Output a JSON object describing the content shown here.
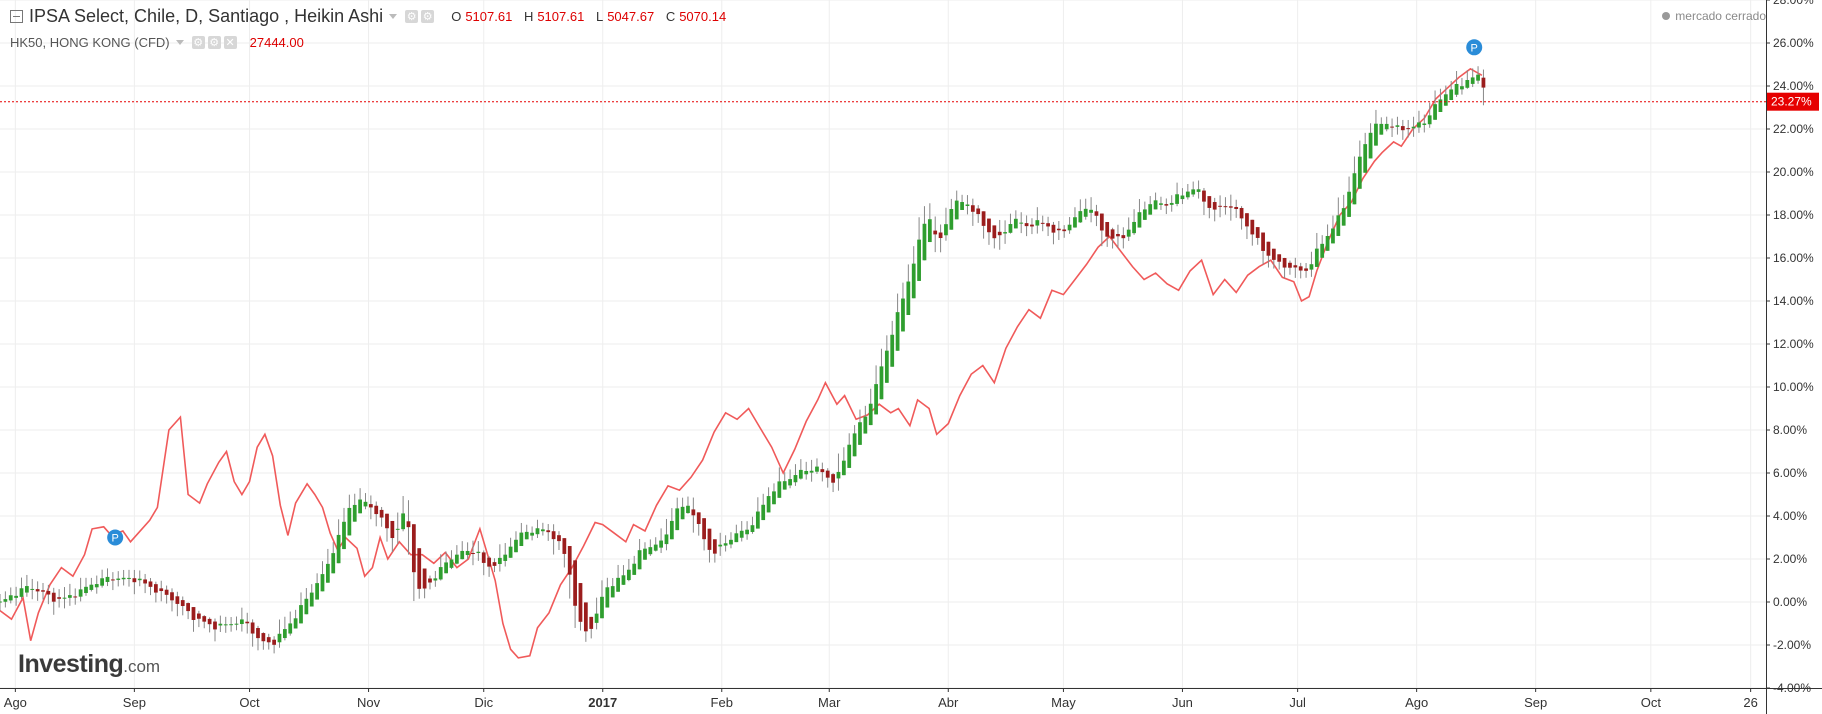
{
  "legend": {
    "main_title": "IPSA Select, Chile, D, Santiago , Heikin Ashi",
    "ohlc": {
      "o_label": "O",
      "o": "5107.61",
      "h_label": "H",
      "h": "5107.61",
      "l_label": "L",
      "l": "5047.67",
      "c_label": "C",
      "c": "5070.14"
    },
    "compare_title": "HK50, HONG KONG (CFD)",
    "compare_value": "27444.00"
  },
  "market_status": "mercado cerrado",
  "logo": {
    "brand": "Investing",
    "tld": ".com"
  },
  "price_label": "23.27%",
  "colors": {
    "up": "#2f9e2f",
    "down": "#9b1d1d",
    "compare": "#f05a5a",
    "price_line": "#e60000",
    "marker": "#2a8cd8"
  },
  "icons": [
    "collapse-icon",
    "settings-icon",
    "close-icon",
    "chevron-down-icon"
  ],
  "chart_data": {
    "type": "line",
    "ylabel": "",
    "xlabel": "",
    "y_unit": "%",
    "ylim": [
      -4,
      28
    ],
    "y_ticks": [
      "28.00%",
      "26.00%",
      "24.00%",
      "22.00%",
      "20.00%",
      "18.00%",
      "16.00%",
      "14.00%",
      "12.00%",
      "10.00%",
      "8.00%",
      "6.00%",
      "4.00%",
      "2.00%",
      "0.00%",
      "-2.00%",
      "-4.00%"
    ],
    "y_tick_values": [
      28,
      26,
      24,
      22,
      20,
      18,
      16,
      14,
      12,
      10,
      8,
      6,
      4,
      2,
      0,
      -2,
      -4
    ],
    "x_ticks": [
      "Ago",
      "Sep",
      "Oct",
      "Nov",
      "Dic",
      "2017",
      "Feb",
      "Mar",
      "Abr",
      "May",
      "Jun",
      "Jul",
      "Ago",
      "Sep",
      "Oct",
      "26"
    ],
    "x_tick_days": [
      -3,
      28,
      58,
      89,
      119,
      150,
      181,
      209,
      240,
      270,
      301,
      331,
      362,
      393,
      423,
      449
    ],
    "x_range_days": [
      -7,
      453
    ],
    "grid": true,
    "current_value": 23.27,
    "series": [
      {
        "name": "IPSA Select, Chile, D, Santiago , Heikin Ashi",
        "type": "heikin_ashi",
        "anchors": [
          [
            -7,
            0
          ],
          [
            0,
            0.8
          ],
          [
            7,
            0
          ],
          [
            14,
            0.6
          ],
          [
            21,
            1.2
          ],
          [
            28,
            1
          ],
          [
            35,
            0.4
          ],
          [
            42,
            -0.6
          ],
          [
            49,
            -1.2
          ],
          [
            56,
            -0.8
          ],
          [
            60,
            -1.9
          ],
          [
            63,
            -2
          ],
          [
            70,
            -0.5
          ],
          [
            77,
            1.5
          ],
          [
            84,
            4.6
          ],
          [
            88,
            4.7
          ],
          [
            91,
            4
          ],
          [
            95,
            2.8
          ],
          [
            98,
            4.5
          ],
          [
            101,
            0.3
          ],
          [
            105,
            1
          ],
          [
            110,
            2.2
          ],
          [
            116,
            2.4
          ],
          [
            119,
            1.6
          ],
          [
            123,
            2
          ],
          [
            127,
            3
          ],
          [
            132,
            3.5
          ],
          [
            136,
            3.2
          ],
          [
            140,
            2
          ],
          [
            143,
            -1
          ],
          [
            146,
            -1.5
          ],
          [
            150,
            0.6
          ],
          [
            155,
            1.3
          ],
          [
            160,
            2.5
          ],
          [
            165,
            2.8
          ],
          [
            168,
            4.2
          ],
          [
            172,
            4.5
          ],
          [
            175,
            3.2
          ],
          [
            178,
            2.2
          ],
          [
            183,
            3
          ],
          [
            188,
            3.6
          ],
          [
            192,
            4.8
          ],
          [
            196,
            5.6
          ],
          [
            200,
            6
          ],
          [
            205,
            6.2
          ],
          [
            210,
            5.6
          ],
          [
            214,
            7.6
          ],
          [
            218,
            8.7
          ],
          [
            222,
            11
          ],
          [
            226,
            13.2
          ],
          [
            230,
            15.6
          ],
          [
            234,
            18.3
          ],
          [
            237,
            16.3
          ],
          [
            240,
            18.6
          ],
          [
            244,
            18.7
          ],
          [
            248,
            17.6
          ],
          [
            252,
            16.8
          ],
          [
            256,
            17.8
          ],
          [
            260,
            17.4
          ],
          [
            264,
            17.8
          ],
          [
            268,
            17
          ],
          [
            272,
            17.8
          ],
          [
            276,
            18.6
          ],
          [
            280,
            17
          ],
          [
            284,
            16.8
          ],
          [
            288,
            17.8
          ],
          [
            292,
            18.6
          ],
          [
            296,
            18.5
          ],
          [
            300,
            19
          ],
          [
            304,
            19.2
          ],
          [
            308,
            18.2
          ],
          [
            312,
            18.5
          ],
          [
            316,
            17.8
          ],
          [
            320,
            16.8
          ],
          [
            324,
            15.8
          ],
          [
            328,
            15.6
          ],
          [
            333,
            15.4
          ],
          [
            336,
            16.5
          ],
          [
            340,
            17.5
          ],
          [
            344,
            19.2
          ],
          [
            348,
            21.5
          ],
          [
            352,
            22.5
          ],
          [
            356,
            22
          ],
          [
            360,
            22
          ],
          [
            364,
            22.5
          ],
          [
            368,
            23.5
          ],
          [
            372,
            24
          ],
          [
            376,
            24.5
          ],
          [
            378,
            24.4
          ],
          [
            380,
            23.27
          ]
        ]
      },
      {
        "name": "HK50, HONG KONG (CFD)",
        "type": "line",
        "points": [
          [
            -7,
            -0.4
          ],
          [
            -4,
            -0.8
          ],
          [
            -1,
            0.2
          ],
          [
            1,
            -1.8
          ],
          [
            3,
            -0.5
          ],
          [
            6,
            0.8
          ],
          [
            9,
            1.6
          ],
          [
            12,
            1.2
          ],
          [
            15,
            2.2
          ],
          [
            17,
            3.4
          ],
          [
            20,
            3.5
          ],
          [
            22,
            3.1
          ],
          [
            25,
            3.3
          ],
          [
            27,
            2.8
          ],
          [
            29,
            3.2
          ],
          [
            32,
            3.8
          ],
          [
            34,
            4.4
          ],
          [
            37,
            8
          ],
          [
            40,
            8.6
          ],
          [
            42,
            5
          ],
          [
            45,
            4.6
          ],
          [
            47,
            5.5
          ],
          [
            50,
            6.5
          ],
          [
            52,
            7
          ],
          [
            54,
            5.6
          ],
          [
            56,
            5
          ],
          [
            58,
            5.6
          ],
          [
            60,
            7.2
          ],
          [
            62,
            7.8
          ],
          [
            64,
            6.8
          ],
          [
            66,
            4.5
          ],
          [
            68,
            3.1
          ],
          [
            70,
            4.6
          ],
          [
            73,
            5.5
          ],
          [
            75,
            5
          ],
          [
            77,
            4.4
          ],
          [
            79,
            3.2
          ],
          [
            81,
            2.4
          ],
          [
            83,
            3
          ],
          [
            86,
            2.5
          ],
          [
            88,
            1.2
          ],
          [
            90,
            1.6
          ],
          [
            92,
            3
          ],
          [
            94,
            2
          ],
          [
            97,
            2.8
          ],
          [
            100,
            2.2
          ],
          [
            103,
            2.2
          ],
          [
            106,
            1.8
          ],
          [
            109,
            2.3
          ],
          [
            112,
            1.6
          ],
          [
            115,
            2
          ],
          [
            118,
            3.4
          ],
          [
            120,
            2.2
          ],
          [
            122,
            1
          ],
          [
            124,
            -1
          ],
          [
            126,
            -2.2
          ],
          [
            128,
            -2.6
          ],
          [
            131,
            -2.5
          ],
          [
            133,
            -1.2
          ],
          [
            136,
            -0.5
          ],
          [
            139,
            0.8
          ],
          [
            142,
            1.6
          ],
          [
            145,
            2.6
          ],
          [
            148,
            3.7
          ],
          [
            150,
            3.6
          ],
          [
            153,
            3.2
          ],
          [
            156,
            2.8
          ],
          [
            158,
            3.6
          ],
          [
            161,
            3.3
          ],
          [
            164,
            4.5
          ],
          [
            167,
            5.4
          ],
          [
            170,
            5.2
          ],
          [
            173,
            5.8
          ],
          [
            176,
            6.6
          ],
          [
            179,
            7.9
          ],
          [
            182,
            8.8
          ],
          [
            185,
            8.5
          ],
          [
            188,
            9
          ],
          [
            191,
            8.1
          ],
          [
            194,
            7.2
          ],
          [
            197,
            6
          ],
          [
            200,
            7.1
          ],
          [
            203,
            8.4
          ],
          [
            206,
            9.4
          ],
          [
            208,
            10.2
          ],
          [
            211,
            9.2
          ],
          [
            213,
            9.6
          ],
          [
            216,
            8.5
          ],
          [
            219,
            8.7
          ],
          [
            222,
            9.2
          ],
          [
            225,
            8.8
          ],
          [
            227,
            9
          ],
          [
            230,
            8.2
          ],
          [
            232,
            9.4
          ],
          [
            235,
            9
          ],
          [
            237,
            7.8
          ],
          [
            240,
            8.3
          ],
          [
            243,
            9.6
          ],
          [
            246,
            10.6
          ],
          [
            249,
            11
          ],
          [
            252,
            10.2
          ],
          [
            255,
            11.8
          ],
          [
            258,
            12.8
          ],
          [
            261,
            13.6
          ],
          [
            264,
            13.2
          ],
          [
            267,
            14.5
          ],
          [
            270,
            14.3
          ],
          [
            273,
            15
          ],
          [
            276,
            15.7
          ],
          [
            279,
            16.5
          ],
          [
            282,
            17
          ],
          [
            285,
            16.3
          ],
          [
            288,
            15.6
          ],
          [
            291,
            15
          ],
          [
            294,
            15.3
          ],
          [
            297,
            14.8
          ],
          [
            300,
            14.5
          ],
          [
            303,
            15.4
          ],
          [
            306,
            15.9
          ],
          [
            309,
            14.3
          ],
          [
            312,
            15
          ],
          [
            315,
            14.4
          ],
          [
            318,
            15.2
          ],
          [
            321,
            15.6
          ],
          [
            324,
            15.9
          ],
          [
            327,
            15.1
          ],
          [
            330,
            14.9
          ],
          [
            332,
            14
          ],
          [
            334,
            14.2
          ],
          [
            336,
            15.4
          ],
          [
            339,
            16.8
          ],
          [
            342,
            18
          ],
          [
            345,
            18.6
          ],
          [
            348,
            19.7
          ],
          [
            351,
            20.5
          ],
          [
            353,
            20.9
          ],
          [
            356,
            21.4
          ],
          [
            358,
            21.2
          ],
          [
            361,
            22
          ],
          [
            364,
            22.5
          ],
          [
            367,
            23.4
          ],
          [
            370,
            23.9
          ],
          [
            373,
            24.4
          ],
          [
            376,
            24.8
          ],
          [
            379,
            24.5
          ]
        ]
      }
    ],
    "markers": [
      {
        "label": "P",
        "x_day": 23,
        "y": 3.0
      },
      {
        "label": "P",
        "x_day": 377,
        "y": 25.8
      }
    ]
  }
}
